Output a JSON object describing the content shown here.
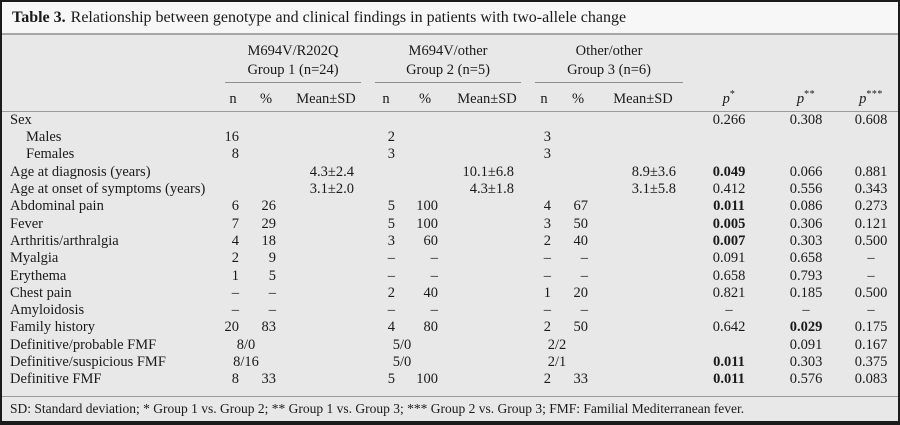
{
  "table": {
    "title_label": "Table 3.",
    "title_text": "Relationship between genotype and clinical findings in patients with two-allele change",
    "groups": [
      {
        "genotype": "M694V/R202Q",
        "group": "Group 1 (n=24)"
      },
      {
        "genotype": "M694V/other",
        "group": "Group 2 (n=5)"
      },
      {
        "genotype": "Other/other",
        "group": "Group 3 (n=6)"
      }
    ],
    "subheaders": {
      "n": "n",
      "pct": "%",
      "mean": "Mean±SD"
    },
    "p_headers": [
      {
        "base": "p",
        "sup": "*"
      },
      {
        "base": "p",
        "sup": "**"
      },
      {
        "base": "p",
        "sup": "***"
      }
    ],
    "rows": [
      {
        "label": "Sex",
        "c": [
          "",
          "",
          "",
          "",
          "",
          "",
          "",
          "",
          "",
          "0.266",
          "0.308",
          "0.608"
        ]
      },
      {
        "label": "Males",
        "indent": true,
        "c": [
          "16",
          "",
          "",
          "2",
          "",
          "",
          "3",
          "",
          "",
          "",
          "",
          ""
        ]
      },
      {
        "label": "Females",
        "indent": true,
        "c": [
          "8",
          "",
          "",
          "3",
          "",
          "",
          "3",
          "",
          "",
          "",
          "",
          ""
        ]
      },
      {
        "label": "Age at diagnosis (years)",
        "c": [
          "",
          "",
          "4.3±2.4",
          "",
          "",
          "10.1±6.8",
          "",
          "",
          "8.9±3.6",
          "0.049",
          "0.066",
          "0.881"
        ],
        "bold": [
          9
        ]
      },
      {
        "label": "Age at onset of symptoms (years)",
        "c": [
          "",
          "",
          "3.1±2.0",
          "",
          "",
          "4.3±1.8",
          "",
          "",
          "3.1±5.8",
          "0.412",
          "0.556",
          "0.343"
        ]
      },
      {
        "label": "Abdominal pain",
        "c": [
          "6",
          "26",
          "",
          "5",
          "100",
          "",
          "4",
          "67",
          "",
          "0.011",
          "0.086",
          "0.273"
        ],
        "bold": [
          9
        ]
      },
      {
        "label": "Fever",
        "c": [
          "7",
          "29",
          "",
          "5",
          "100",
          "",
          "3",
          "50",
          "",
          "0.005",
          "0.306",
          "0.121"
        ],
        "bold": [
          9
        ]
      },
      {
        "label": "Arthritis/arthralgia",
        "c": [
          "4",
          "18",
          "",
          "3",
          "60",
          "",
          "2",
          "40",
          "",
          "0.007",
          "0.303",
          "0.500"
        ],
        "bold": [
          9
        ]
      },
      {
        "label": "Myalgia",
        "c": [
          "2",
          "9",
          "",
          "–",
          "–",
          "",
          "–",
          "–",
          "",
          "0.091",
          "0.658",
          "–"
        ]
      },
      {
        "label": "Erythema",
        "c": [
          "1",
          "5",
          "",
          "–",
          "–",
          "",
          "–",
          "–",
          "",
          "0.658",
          "0.793",
          "–"
        ]
      },
      {
        "label": "Chest pain",
        "c": [
          "–",
          "–",
          "",
          "2",
          "40",
          "",
          "1",
          "20",
          "",
          "0.821",
          "0.185",
          "0.500"
        ]
      },
      {
        "label": "Amyloidosis",
        "c": [
          "–",
          "–",
          "",
          "–",
          "–",
          "",
          "–",
          "–",
          "",
          "–",
          "–",
          "–"
        ]
      },
      {
        "label": "Family history",
        "c": [
          "20",
          "83",
          "",
          "4",
          "80",
          "",
          "2",
          "50",
          "",
          "0.642",
          "0.029",
          "0.175"
        ],
        "bold": [
          10
        ]
      },
      {
        "label": "Definitive/probable FMF",
        "merge": true,
        "c": [
          "8/0",
          "",
          "",
          "5/0",
          "",
          "",
          "2/2",
          "",
          "",
          "",
          "0.091",
          "0.167"
        ]
      },
      {
        "label": "Definitive/suspicious FMF",
        "merge": true,
        "c": [
          "8/16",
          "",
          "",
          "5/0",
          "",
          "",
          "2/1",
          "",
          "",
          "0.011",
          "0.303",
          "0.375"
        ],
        "bold": [
          9
        ]
      },
      {
        "label": "Definitive FMF",
        "c": [
          "8",
          "33",
          "",
          "5",
          "100",
          "",
          "2",
          "33",
          "",
          "0.011",
          "0.576",
          "0.083"
        ],
        "bold": [
          9
        ]
      }
    ],
    "footnote": "SD: Standard deviation; * Group 1 vs. Group 2; ** Group 1 vs. Group 3; *** Group 2 vs. Group 3; FMF: Familial Mediterranean fever."
  }
}
